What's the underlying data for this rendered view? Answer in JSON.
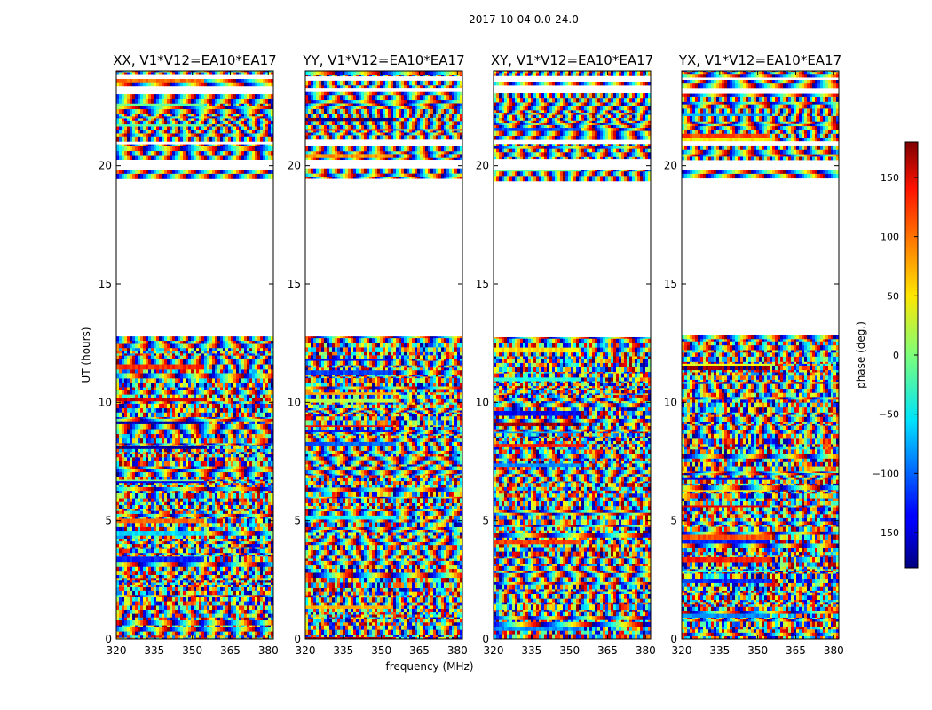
{
  "chart_data": {
    "type": "heatmap",
    "suptitle": "2017-10-04 0.0-24.0",
    "xlabel": "frequency (MHz)",
    "ylabel": "UT (hours)",
    "xlim": [
      320,
      382
    ],
    "ylim": [
      0,
      24
    ],
    "xticks": [
      320,
      335,
      350,
      365,
      380
    ],
    "yticks": [
      0,
      5,
      10,
      15,
      20
    ],
    "panels": [
      {
        "title": "XX, V1*V12=EA10*EA17",
        "pol": "XX"
      },
      {
        "title": "YY, V1*V12=EA10*EA17",
        "pol": "YY"
      },
      {
        "title": "XY, V1*V12=EA10*EA17",
        "pol": "XY"
      },
      {
        "title": "YX, V1*V12=EA10*EA17",
        "pol": "YX"
      }
    ],
    "data_gaps_hours": [
      [
        12.8,
        19.4
      ],
      [
        19.85,
        20.25
      ],
      [
        20.9,
        21.05
      ],
      [
        23.05,
        23.3
      ],
      [
        23.6,
        23.8
      ]
    ],
    "colorbar": {
      "label": "phase (deg.)",
      "range": [
        -180,
        180
      ],
      "ticks": [
        150,
        100,
        50,
        0,
        -50,
        -100,
        -150
      ],
      "tick_labels": [
        "150",
        "100",
        "50",
        "0",
        "−50",
        "−100",
        "−150"
      ],
      "colormap": "jet"
    }
  }
}
